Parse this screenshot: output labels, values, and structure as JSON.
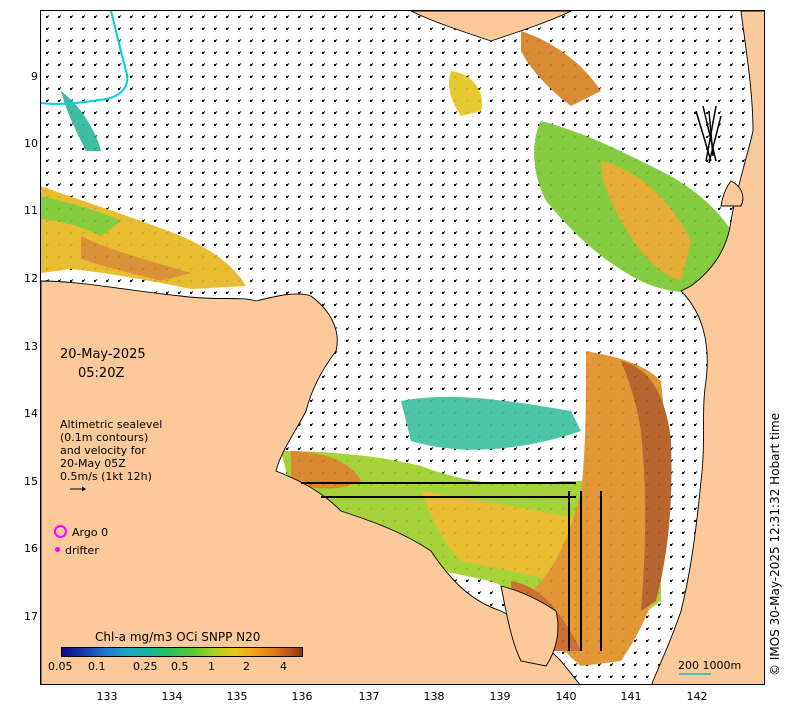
{
  "map": {
    "date_label": "20-May-2025",
    "time_label": "05:20Z",
    "altimetry_legend": [
      "Altimetric sealevel",
      "(0.1m contours)",
      "and velocity for",
      "20-May 05Z",
      "0.5m/s (1kt 12h)"
    ],
    "argo_label": "Argo 0",
    "drifter_label": "drifter",
    "colorbar_title": "Chl-a mg/m3 OCi SNPP N20",
    "colorbar_ticks": [
      "0.05",
      "0.1",
      "0.25",
      "0.5",
      "1",
      "2",
      "4"
    ],
    "y_ticks": [
      "9",
      "10",
      "11",
      "12",
      "13",
      "14",
      "15",
      "16",
      "17"
    ],
    "x_ticks": [
      "133",
      "134",
      "135",
      "136",
      "137",
      "138",
      "139",
      "140",
      "141",
      "142"
    ],
    "scale_label": "200  1000m",
    "copyright": "© IMOS 30-May-2025 12:31:32 Hobart time",
    "colors": {
      "land": "#fcc99b",
      "ocean": "#ffffff",
      "coast": "#000000",
      "argo": "#ff00ff",
      "scale_bar": "#3fc5c0",
      "river": "#00d0e0"
    }
  }
}
